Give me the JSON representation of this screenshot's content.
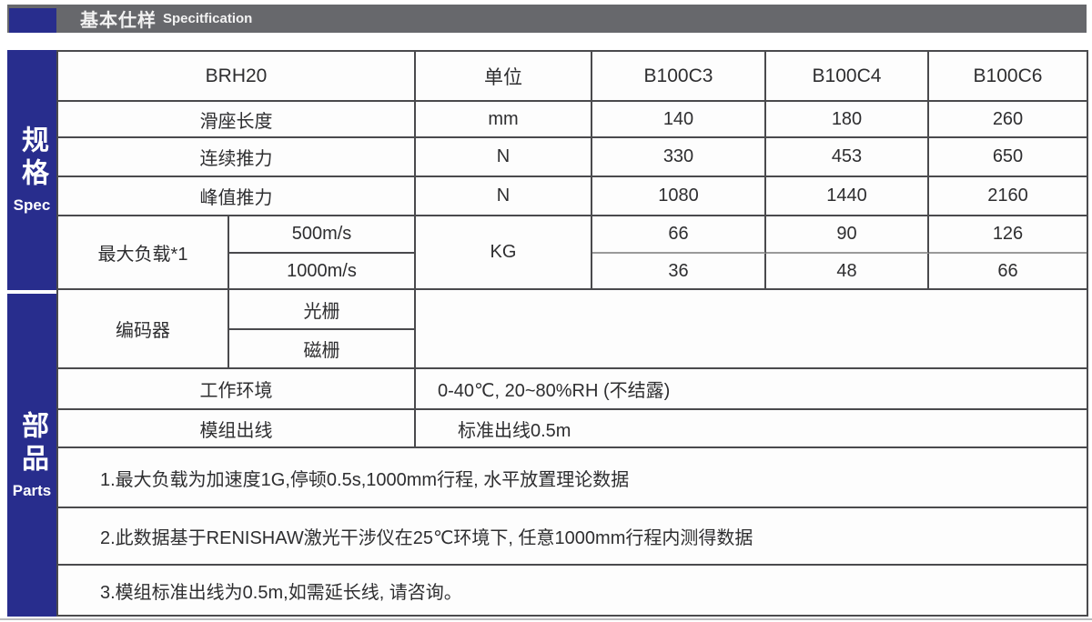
{
  "header": {
    "title_cn": "基本仕样",
    "title_en": "Specitfication"
  },
  "sidebar": {
    "spec": {
      "cn": "规格",
      "en": "Spec"
    },
    "parts": {
      "cn": "部品",
      "en": "Parts"
    }
  },
  "table": {
    "product": "BRH20",
    "unit_header": "单位",
    "models": [
      "B100C3",
      "B100C4",
      "B100C6"
    ],
    "rows": [
      {
        "label": "滑座长度",
        "unit": "mm",
        "values": [
          "140",
          "180",
          "260"
        ]
      },
      {
        "label": "连续推力",
        "unit": "N",
        "values": [
          "330",
          "453",
          "650"
        ]
      },
      {
        "label": "峰值推力",
        "unit": "N",
        "values": [
          "1080",
          "1440",
          "2160"
        ]
      }
    ],
    "max_load": {
      "label": "最大负载*1",
      "unit": "KG",
      "sub_rows": [
        {
          "label": "500m/s",
          "values": [
            "66",
            "90",
            "126"
          ]
        },
        {
          "label": "1000m/s",
          "values": [
            "36",
            "48",
            "66"
          ]
        }
      ]
    },
    "encoder": {
      "label": "编码器",
      "sub_rows": [
        "光栅",
        "磁栅"
      ],
      "value": ""
    },
    "environment": {
      "label": "工作环境",
      "value": "0-40℃, 20~80%RH (不结露)"
    },
    "cable": {
      "label": "模组出线",
      "value": "标准出线0.5m"
    },
    "notes": [
      "1.最大负载为加速度1G,停顿0.5s,1000mm行程, 水平放置理论数据",
      "2.此数据基于RENISHAW激光干涉仪在25℃环境下, 任意1000mm行程内测得数据",
      "3.模组标准出线为0.5m,如需延长线, 请咨询。"
    ]
  },
  "colors": {
    "sidebar_blue": "#282d8d",
    "header_bar_gray": "#67686c",
    "table_line": "#4a4a4d",
    "light_line": "#9a9a9a",
    "text": "#2e2e30",
    "title_text": "#f2f2f2"
  }
}
